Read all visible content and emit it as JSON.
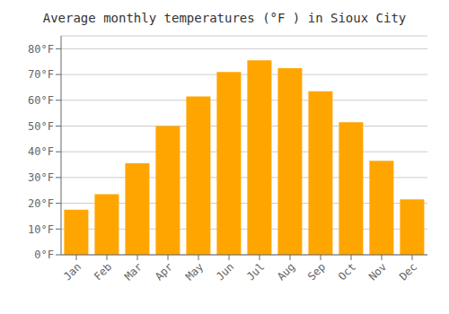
{
  "chart_data": {
    "type": "bar",
    "title": "Average monthly temperatures (°F ) in Sioux City",
    "categories": [
      "Jan",
      "Feb",
      "Mar",
      "Apr",
      "May",
      "Jun",
      "Jul",
      "Aug",
      "Sep",
      "Oct",
      "Nov",
      "Dec"
    ],
    "values": [
      17.5,
      23.5,
      35.5,
      50.0,
      61.5,
      71.0,
      75.5,
      72.5,
      63.5,
      51.5,
      36.5,
      21.5
    ],
    "color": "#FFA500",
    "ylim": [
      0,
      85
    ],
    "yticks": [
      {
        "value": 0,
        "label": "0°F"
      },
      {
        "value": 10,
        "label": "10°F"
      },
      {
        "value": 20,
        "label": "20°F"
      },
      {
        "value": 30,
        "label": "30°F"
      },
      {
        "value": 40,
        "label": "40°F"
      },
      {
        "value": 50,
        "label": "50°F"
      },
      {
        "value": 60,
        "label": "60°F"
      },
      {
        "value": 70,
        "label": "70°F"
      },
      {
        "value": 80,
        "label": "80°F"
      }
    ],
    "grid": true
  }
}
